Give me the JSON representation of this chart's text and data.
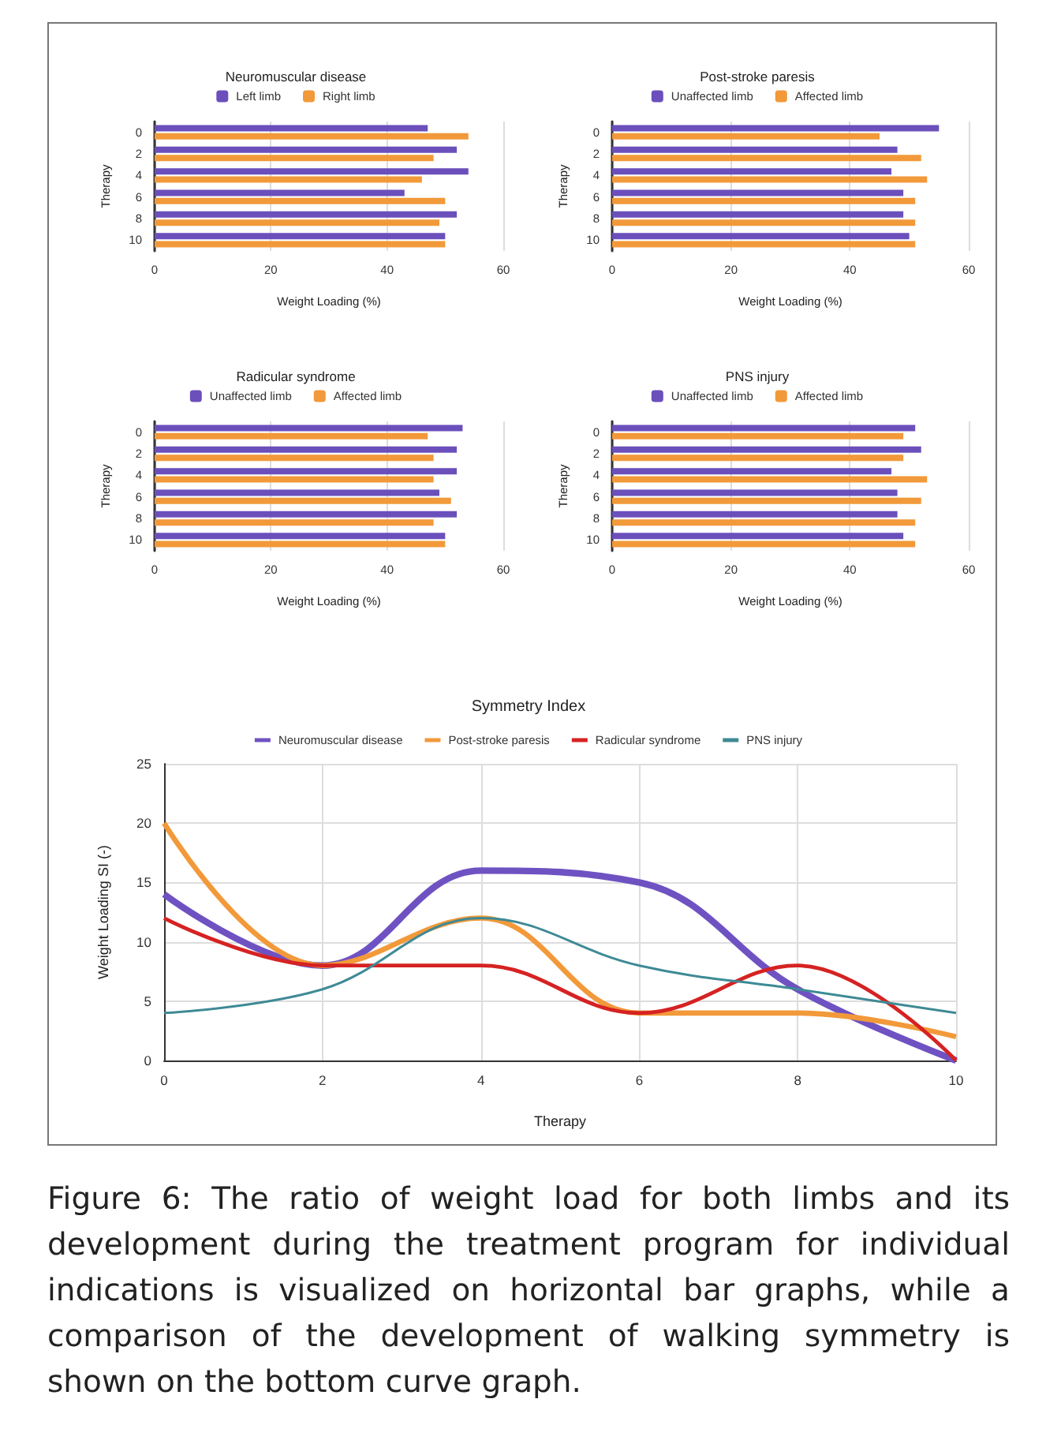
{
  "chart_data": [
    {
      "type": "bar",
      "orientation": "horizontal",
      "title": "Neuromuscular disease",
      "xlabel": "Weight Loading (%)",
      "ylabel": "Therapy",
      "categories": [
        "0",
        "2",
        "4",
        "6",
        "8",
        "10"
      ],
      "series": [
        {
          "name": "Left limb",
          "color": "#6b4fbb",
          "values": [
            47,
            52,
            54,
            43,
            52,
            50
          ]
        },
        {
          "name": "Right limb",
          "color": "#f2993a",
          "values": [
            54,
            48,
            46,
            50,
            49,
            50
          ]
        }
      ],
      "xlim": [
        0,
        60
      ],
      "xticks": [
        0,
        20,
        40,
        60
      ],
      "grid": "x",
      "legend": "top"
    },
    {
      "type": "bar",
      "orientation": "horizontal",
      "title": "Post-stroke paresis",
      "xlabel": "Weight Loading (%)",
      "ylabel": "Therapy",
      "categories": [
        "0",
        "2",
        "4",
        "6",
        "8",
        "10"
      ],
      "series": [
        {
          "name": "Unaffected limb",
          "color": "#6b4fbb",
          "values": [
            55,
            48,
            47,
            49,
            49,
            50
          ]
        },
        {
          "name": "Affected limb",
          "color": "#f2993a",
          "values": [
            45,
            52,
            53,
            51,
            51,
            51
          ]
        }
      ],
      "xlim": [
        0,
        60
      ],
      "xticks": [
        0,
        20,
        40,
        60
      ],
      "grid": "x",
      "legend": "top"
    },
    {
      "type": "bar",
      "orientation": "horizontal",
      "title": "Radicular syndrome",
      "xlabel": "Weight Loading (%)",
      "ylabel": "Therapy",
      "categories": [
        "0",
        "2",
        "4",
        "6",
        "8",
        "10"
      ],
      "series": [
        {
          "name": "Unaffected limb",
          "color": "#6b4fbb",
          "values": [
            53,
            52,
            52,
            49,
            52,
            50
          ]
        },
        {
          "name": "Affected limb",
          "color": "#f2993a",
          "values": [
            47,
            48,
            48,
            51,
            48,
            50
          ]
        }
      ],
      "xlim": [
        0,
        60
      ],
      "xticks": [
        0,
        20,
        40,
        60
      ],
      "grid": "x",
      "legend": "top"
    },
    {
      "type": "bar",
      "orientation": "horizontal",
      "title": "PNS injury",
      "xlabel": "Weight Loading (%)",
      "ylabel": "Therapy",
      "categories": [
        "0",
        "2",
        "4",
        "6",
        "8",
        "10"
      ],
      "series": [
        {
          "name": "Unaffected limb",
          "color": "#6b4fbb",
          "values": [
            51,
            52,
            47,
            48,
            48,
            49
          ]
        },
        {
          "name": "Affected limb",
          "color": "#f2993a",
          "values": [
            49,
            49,
            53,
            52,
            51,
            51
          ]
        }
      ],
      "xlim": [
        0,
        60
      ],
      "xticks": [
        0,
        20,
        40,
        60
      ],
      "grid": "x",
      "legend": "top"
    },
    {
      "type": "line",
      "title": "Symmetry Index",
      "xlabel": "Therapy",
      "ylabel": "Weight Loading SI (-)",
      "x": [
        0,
        2,
        4,
        6,
        8,
        10
      ],
      "series": [
        {
          "name": "Neuromuscular disease",
          "color": "#6f52c2",
          "values": [
            14,
            8,
            16,
            15,
            6,
            0
          ]
        },
        {
          "name": "Post-stroke paresis",
          "color": "#f2993a",
          "values": [
            20,
            8,
            12,
            4,
            4,
            2
          ]
        },
        {
          "name": "Radicular syndrome",
          "color": "#d62222",
          "values": [
            12,
            8,
            8,
            4,
            8,
            0
          ]
        },
        {
          "name": "PNS injury",
          "color": "#3e8a95",
          "values": [
            4,
            6,
            12,
            8,
            6,
            4
          ]
        }
      ],
      "xlim": [
        0,
        10
      ],
      "xticks": [
        0,
        2,
        4,
        6,
        8,
        10
      ],
      "ylim": [
        0,
        25
      ],
      "yticks": [
        0,
        5,
        10,
        15,
        20,
        25
      ],
      "grid": true,
      "legend": "top",
      "marker": "none",
      "annotations": [
        "Figure 6: The ratio of weight load for both limbs and its development during the treatment program for individual indications is visualized on horizontal bar graphs, while a comparison of the development of walking symmetry is shown on the bottom curve graph."
      ]
    }
  ]
}
